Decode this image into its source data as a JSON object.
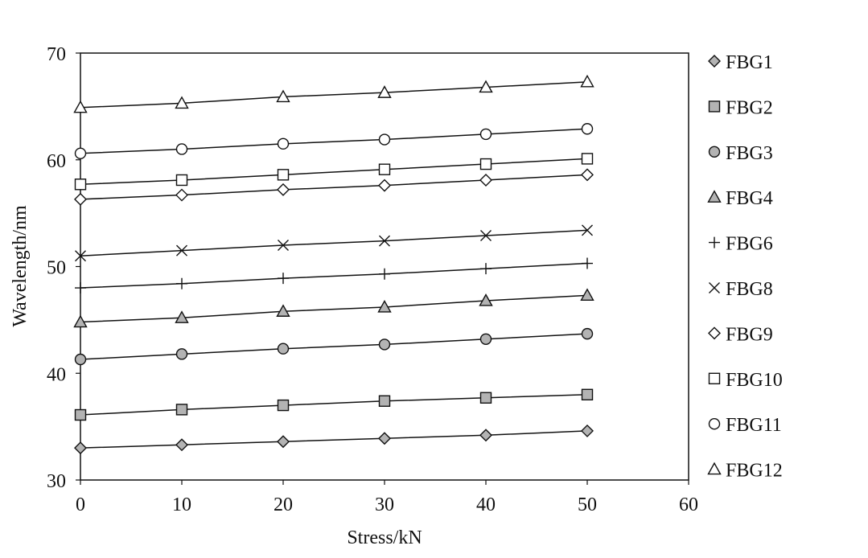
{
  "chart_data": {
    "type": "line",
    "title": "",
    "xlabel": "Stress/kN",
    "ylabel": "Wavelength/nm",
    "xlim": [
      0,
      60
    ],
    "ylim": [
      30,
      70
    ],
    "xticks": [
      0,
      10,
      20,
      30,
      40,
      50,
      60
    ],
    "yticks": [
      30,
      40,
      50,
      60,
      70
    ],
    "grid": false,
    "legend": "right",
    "x": [
      0,
      10,
      20,
      30,
      40,
      50
    ],
    "series": [
      {
        "name": "FBG1",
        "marker": "diamond-filled",
        "values": [
          33.0,
          33.3,
          33.6,
          33.9,
          34.2,
          34.6
        ]
      },
      {
        "name": "FBG2",
        "marker": "square-filled",
        "values": [
          36.1,
          36.6,
          37.0,
          37.4,
          37.7,
          38.0
        ]
      },
      {
        "name": "FBG3",
        "marker": "circle-filled",
        "values": [
          41.3,
          41.8,
          42.3,
          42.7,
          43.2,
          43.7
        ]
      },
      {
        "name": "FBG4",
        "marker": "triangle-filled",
        "values": [
          44.8,
          45.2,
          45.8,
          46.2,
          46.8,
          47.3
        ]
      },
      {
        "name": "FBG6",
        "marker": "plus",
        "values": [
          48.0,
          48.4,
          48.9,
          49.3,
          49.8,
          50.3
        ]
      },
      {
        "name": "FBG8",
        "marker": "cross",
        "values": [
          51.0,
          51.5,
          52.0,
          52.4,
          52.9,
          53.4
        ]
      },
      {
        "name": "FBG9",
        "marker": "diamond-open",
        "values": [
          56.3,
          56.7,
          57.2,
          57.6,
          58.1,
          58.6
        ]
      },
      {
        "name": "FBG10",
        "marker": "square-open",
        "values": [
          57.7,
          58.1,
          58.6,
          59.1,
          59.6,
          60.1
        ]
      },
      {
        "name": "FBG11",
        "marker": "circle-open",
        "values": [
          60.6,
          61.0,
          61.5,
          61.9,
          62.4,
          62.9
        ]
      },
      {
        "name": "FBG12",
        "marker": "triangle-open",
        "values": [
          64.9,
          65.3,
          65.9,
          66.3,
          66.8,
          67.3
        ]
      }
    ],
    "colors": {
      "marker_fill": "#b3b3b3",
      "line": "#111111",
      "background": "#ffffff"
    }
  }
}
